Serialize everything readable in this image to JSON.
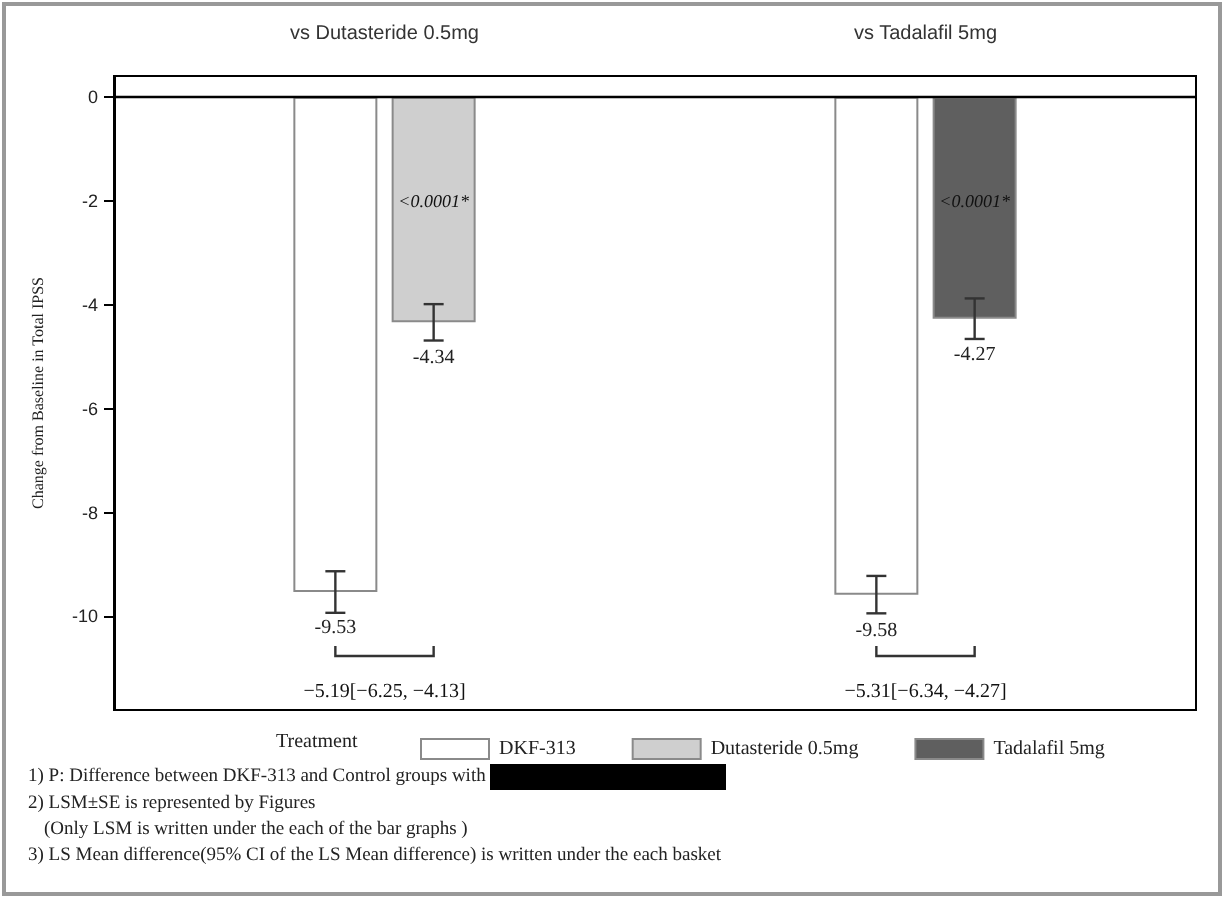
{
  "chart_data": {
    "type": "bar",
    "ylabel": "Change from Baseline in Total IPSS",
    "categories": [
      "vs Dutasteride 0.5mg",
      "vs Tadalafil 5mg"
    ],
    "series": [
      {
        "name": "DKF-313",
        "color": "#ffffff",
        "values": [
          -9.53,
          -9.58
        ],
        "errors": [
          0.4,
          0.36
        ]
      },
      {
        "name": "Dutasteride 0.5mg",
        "color": "#cfcfcf",
        "values": [
          -4.34,
          null
        ],
        "errors": [
          0.35,
          null
        ]
      },
      {
        "name": "Tadalafil 5mg",
        "color": "#5f5f5f",
        "values": [
          null,
          -4.27
        ],
        "errors": [
          null,
          0.39
        ]
      }
    ],
    "annotations": [
      "<0.0001*",
      "<0.0001*",
      "−5.19[−6.25, −4.13]",
      "−5.31[−6.34, −4.27]",
      "1) P: Difference between DKF-313 and Control groups with",
      "2) LSM±SE is represented by Figures",
      "(Only LSM is written under the each of the bar graphs )",
      "3) LS Mean difference(95% CI of the LS Mean difference) is written under the each basket"
    ],
    "ref_lines": [
      {
        "axis": "y",
        "value": 0,
        "color": "#000000"
      }
    ],
    "ylim": [
      -11.8,
      0.4
    ],
    "yticks": [
      0,
      -2,
      -4,
      -6,
      -8,
      -10
    ],
    "data_labels": true,
    "legend": "bottom",
    "legend_title": "Treatment"
  }
}
